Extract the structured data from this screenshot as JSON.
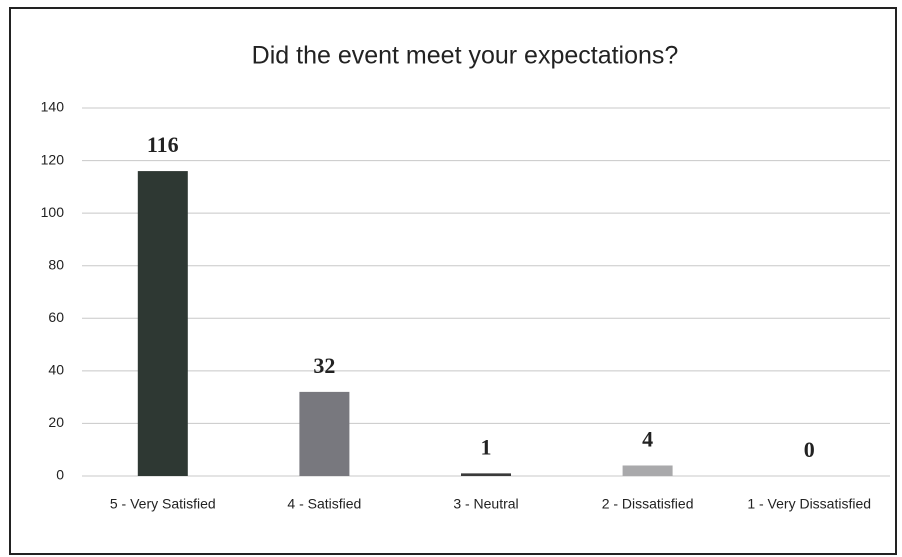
{
  "chart_data": {
    "type": "bar",
    "title": "Did the event meet your expectations?",
    "categories": [
      "5 - Very Satisfied",
      "4 - Satisfied",
      "3 - Neutral",
      "2 - Dissatisfied",
      "1 - Very Dissatisfied"
    ],
    "values": [
      116,
      32,
      1,
      4,
      0
    ],
    "colors": [
      "#2e3833",
      "#78787e",
      "#3a3a3a",
      "#a9a9ab",
      "#9a9a9a"
    ],
    "ylim": [
      0,
      140
    ],
    "yticks": [
      0,
      20,
      40,
      60,
      80,
      100,
      120,
      140
    ],
    "grid": true
  }
}
